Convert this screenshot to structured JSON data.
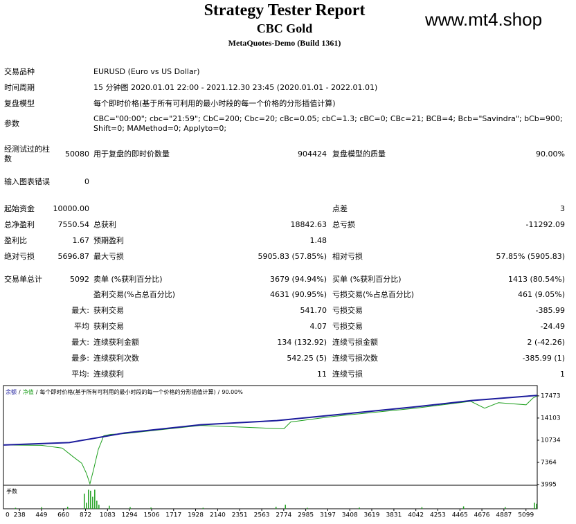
{
  "header": {
    "title": "Strategy Tester Report",
    "subtitle": "CBC Gold",
    "server": "MetaQuotes-Demo (Build 1361)",
    "watermark": "www.mt4.shop"
  },
  "table": {
    "rows": [
      {
        "c1": "交易品种",
        "c3": "EURUSD (Euro vs US Dollar)"
      },
      {
        "c1": "时间周期",
        "c3": "15 分钟图 2020.01.01 22:00 - 2021.12.30 23:45 (2020.01.01 - 2022.01.01)"
      },
      {
        "c1": "复盘模型",
        "c3": "每个即时价格(基于所有可利用的最小时段的每一个价格的分形插值计算)"
      },
      {
        "c1": "参数",
        "c3": "CBC=\"00:00\"; cbc=\"21:59\"; CbC=200; Cbc=20; cBc=0.05; cbC=1.3; cBC=0; CBc=21; BCB=4; Bcb=\"Savindra\"; bCb=900; Shift=0; MAMethod=0; Applyto=0;"
      },
      {
        "c1": "经测试过的柱数",
        "c2": "50080",
        "c3": "用于复盘的即时价数量",
        "c4": "904424",
        "c5": "复盘模型的质量",
        "c6": "90.00%"
      },
      {
        "c1": "输入图表错误",
        "c2": "0"
      },
      {
        "c1": "起始资金",
        "c2": "10000.00",
        "c5": "点差",
        "c6": "3"
      },
      {
        "c1": "总净盈利",
        "c2": "7550.54",
        "c3": "总获利",
        "c4": "18842.63",
        "c5": "总亏损",
        "c6": "-11292.09"
      },
      {
        "c1": "盈利比",
        "c2": "1.67",
        "c3": "预期盈利",
        "c4": "1.48"
      },
      {
        "c1": "绝对亏损",
        "c2": "5696.87",
        "c3": "最大亏损",
        "c4": "5905.83 (57.85%)",
        "c5": "相对亏损",
        "c6": "57.85% (5905.83)"
      },
      {
        "c1": "交易单总计",
        "c2": "5092",
        "c3": "卖单 (%获利百分比)",
        "c4": "3679 (94.94%)",
        "c5": "买单 (%获利百分比)",
        "c6": "1413 (80.54%)"
      },
      {
        "c3": "盈利交易(%占总百分比)",
        "c4": "4631 (90.95%)",
        "c5": "亏损交易(%占总百分比)",
        "c6": "461 (9.05%)"
      },
      {
        "c2": "最大:",
        "c3": "获利交易",
        "c4": "541.70",
        "c5": "亏损交易",
        "c6": "-385.99"
      },
      {
        "c2": "平均",
        "c3": "获利交易",
        "c4": "4.07",
        "c5": "亏损交易",
        "c6": "-24.49"
      },
      {
        "c2": "最大:",
        "c3": "连续获利金额",
        "c4": "134 (132.92)",
        "c5": "连续亏损金额",
        "c6": "2 (-42.26)"
      },
      {
        "c2": "最多:",
        "c3": "连续获利次数",
        "c4": "542.25 (5)",
        "c5": "连续亏损次数",
        "c6": "-385.99 (1)"
      },
      {
        "c2": "平均:",
        "c3": "连续获利",
        "c4": "11",
        "c5": "连续亏损",
        "c6": "1"
      }
    ]
  },
  "chart_data": {
    "type": "line",
    "legend_separator": "/",
    "xlim": [
      84,
      5207
    ],
    "ylim": [
      3995,
      19040
    ],
    "xticks": [
      0,
      238,
      449,
      660,
      872,
      1083,
      1294,
      1506,
      1717,
      1928,
      2140,
      2351,
      2563,
      2774,
      2985,
      3197,
      3408,
      3619,
      3831,
      4042,
      4253,
      4465,
      4676,
      4887,
      5099
    ],
    "yticks": [
      3995,
      7364,
      10734,
      14103,
      17473
    ],
    "series": [
      {
        "name": "余额",
        "color": "#1c1c9c",
        "x": [
          84,
          715,
          1246,
          1977,
          2708,
          3240,
          4037,
          4569,
          5207
        ],
        "values": [
          10000,
          10370,
          11832,
          13086,
          13713,
          14549,
          15803,
          16743,
          17550
        ]
      },
      {
        "name": "净值",
        "color": "#1fa01f",
        "x": [
          84,
          449,
          649,
          748,
          835,
          881,
          914,
          948,
          994,
          1047,
          1114,
          1246,
          1977,
          2775,
          2841,
          3240,
          3506,
          4037,
          4569,
          4702,
          4835,
          5100,
          5167,
          5207
        ],
        "values": [
          10000,
          9952,
          9534,
          8280,
          7235,
          5667,
          4100,
          6190,
          9325,
          11415,
          11624,
          11728,
          12982,
          12460,
          13505,
          14341,
          14759,
          15595,
          16640,
          15595,
          16431,
          16117,
          17162,
          17475
        ]
      }
    ],
    "volume": {
      "name": "手数",
      "color": "#1fa01f",
      "ylim": [
        0,
        1
      ],
      "x": [
        200,
        450,
        700,
        860,
        880,
        900,
        920,
        940,
        960,
        980,
        1000,
        1100,
        1300,
        1500,
        2000,
        2700,
        2790,
        3000,
        3500,
        4100,
        4500,
        4900,
        5180,
        5200
      ],
      "values": [
        0.05,
        0.08,
        0.1,
        0.75,
        0.3,
        0.95,
        0.9,
        0.6,
        0.95,
        0.4,
        0.2,
        0.15,
        0.08,
        0.06,
        0.05,
        0.1,
        0.2,
        0.05,
        0.06,
        0.08,
        0.12,
        0.08,
        0.3,
        0.25
      ]
    }
  }
}
